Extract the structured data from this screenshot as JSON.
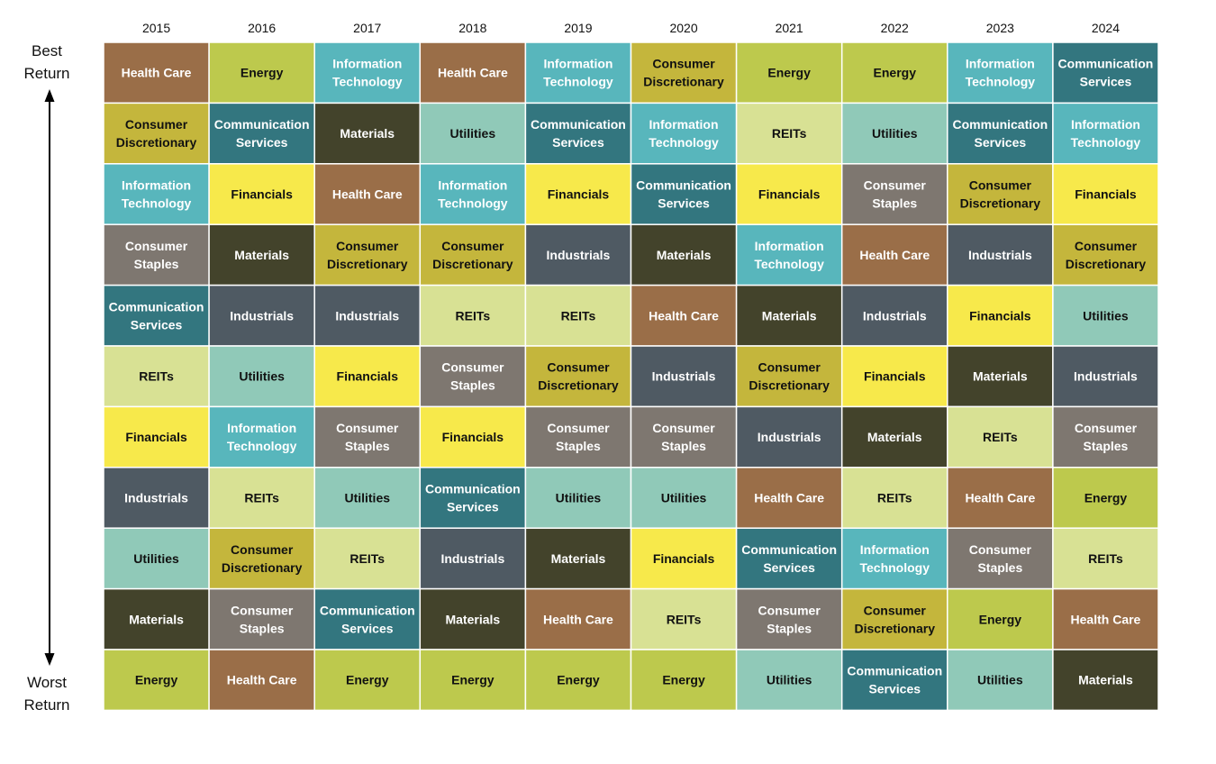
{
  "y_axis": {
    "top": [
      "Best",
      "Return"
    ],
    "bottom": [
      "Worst",
      "Return"
    ]
  },
  "chart_data": {
    "type": "table",
    "title": "",
    "columns": [
      "2015",
      "2016",
      "2017",
      "2018",
      "2019",
      "2020",
      "2021",
      "2022",
      "2023",
      "2024"
    ],
    "ranking": "rows ordered from best return (top) to worst return (bottom)",
    "sectors": {
      "Health Care": {
        "label": [
          "Health Care"
        ],
        "color": "#9a6e48",
        "text": "#ffffff"
      },
      "Energy": {
        "label": [
          "Energy"
        ],
        "color": "#bdc94d",
        "text": "#111111"
      },
      "Information Technology": {
        "label": [
          "Information",
          "Technology"
        ],
        "color": "#58b6bc",
        "text": "#ffffff"
      },
      "Consumer Discretionary": {
        "label": [
          "Consumer",
          "Discretionary"
        ],
        "color": "#c4b63c",
        "text": "#111111"
      },
      "Communication Services": {
        "label": [
          "Communication",
          "Services"
        ],
        "color": "#33767f",
        "text": "#ffffff"
      },
      "Materials": {
        "label": [
          "Materials"
        ],
        "color": "#43432b",
        "text": "#ffffff"
      },
      "Utilities": {
        "label": [
          "Utilities"
        ],
        "color": "#90c9b8",
        "text": "#111111"
      },
      "REITs": {
        "label": [
          "REITs"
        ],
        "color": "#d8e194",
        "text": "#111111"
      },
      "Financials": {
        "label": [
          "Financials"
        ],
        "color": "#f7e94b",
        "text": "#111111"
      },
      "Consumer Staples": {
        "label": [
          "Consumer",
          "Staples"
        ],
        "color": "#7e7770",
        "text": "#ffffff"
      },
      "Industrials": {
        "label": [
          "Industrials"
        ],
        "color": "#4f5a63",
        "text": "#ffffff"
      }
    },
    "rankings": {
      "2015": [
        "Health Care",
        "Consumer Discretionary",
        "Information Technology",
        "Consumer Staples",
        "Communication Services",
        "REITs",
        "Financials",
        "Industrials",
        "Utilities",
        "Materials",
        "Energy"
      ],
      "2016": [
        "Energy",
        "Communication Services",
        "Financials",
        "Materials",
        "Industrials",
        "Utilities",
        "Information Technology",
        "REITs",
        "Consumer Discretionary",
        "Consumer Staples",
        "Health Care"
      ],
      "2017": [
        "Information Technology",
        "Materials",
        "Health Care",
        "Consumer Discretionary",
        "Industrials",
        "Financials",
        "Consumer Staples",
        "Utilities",
        "REITs",
        "Communication Services",
        "Energy"
      ],
      "2018": [
        "Health Care",
        "Utilities",
        "Information Technology",
        "Consumer Discretionary",
        "REITs",
        "Consumer Staples",
        "Financials",
        "Communication Services",
        "Industrials",
        "Materials",
        "Energy"
      ],
      "2019": [
        "Information Technology",
        "Communication Services",
        "Financials",
        "Industrials",
        "REITs",
        "Consumer Discretionary",
        "Consumer Staples",
        "Utilities",
        "Materials",
        "Health Care",
        "Energy"
      ],
      "2020": [
        "Consumer Discretionary",
        "Information Technology",
        "Communication Services",
        "Materials",
        "Health Care",
        "Industrials",
        "Consumer Staples",
        "Utilities",
        "Financials",
        "REITs",
        "Energy"
      ],
      "2021": [
        "Energy",
        "REITs",
        "Financials",
        "Information Technology",
        "Materials",
        "Consumer Discretionary",
        "Industrials",
        "Health Care",
        "Communication Services",
        "Consumer Staples",
        "Utilities"
      ],
      "2022": [
        "Energy",
        "Utilities",
        "Consumer Staples",
        "Health Care",
        "Industrials",
        "Financials",
        "Materials",
        "REITs",
        "Information Technology",
        "Consumer Discretionary",
        "Communication Services"
      ],
      "2023": [
        "Information Technology",
        "Communication Services",
        "Consumer Discretionary",
        "Industrials",
        "Financials",
        "Materials",
        "REITs",
        "Health Care",
        "Consumer Staples",
        "Energy",
        "Utilities"
      ],
      "2024": [
        "Communication Services",
        "Information Technology",
        "Financials",
        "Consumer Discretionary",
        "Utilities",
        "Industrials",
        "Consumer Staples",
        "Energy",
        "REITs",
        "Health Care",
        "Materials"
      ]
    }
  }
}
